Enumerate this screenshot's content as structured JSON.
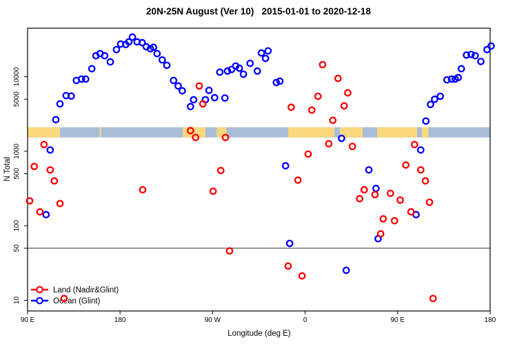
{
  "title": "20N-25N August (Ver 10)   2015-01-01 to 2020-12-18",
  "chart_data": {
    "type": "scatter",
    "title": "20N-25N August (Ver 10)  2015-01-01 to 2020-12-18",
    "xlabel": "Longitude (deg E)",
    "ylabel": "N Total",
    "x_axis": {
      "note": "longitude unwrapped eastward from 90E, degrees along axis 90..540",
      "range": [
        90,
        540
      ],
      "ticks": [
        {
          "value": 90,
          "label": "90 E"
        },
        {
          "value": 180,
          "label": "180"
        },
        {
          "value": 270,
          "label": "90 W"
        },
        {
          "value": 360,
          "label": "0"
        },
        {
          "value": 450,
          "label": "90 E"
        },
        {
          "value": 540,
          "label": "180"
        }
      ]
    },
    "y_axis": {
      "scale": "log",
      "range": [
        7.2,
        44700
      ],
      "ticks": [
        10,
        50,
        100,
        500,
        1000,
        5000,
        10000
      ],
      "tick_labels": [
        "10",
        "50",
        "100",
        "500",
        "1000",
        "5000",
        "10000"
      ]
    },
    "reference_line_y": 50,
    "map_band": {
      "description": "strip map of the 20N-25N latitude band drawn across the plot",
      "y_range": [
        1530,
        2100
      ],
      "ocean_color": "#A9BDD9",
      "land_color": "#FAD87E",
      "land_segments_deg": [
        [
          90,
          121.5
        ],
        [
          160,
          161.5
        ],
        [
          241,
          263
        ],
        [
          274,
          283.5
        ],
        [
          343.5,
          388.5
        ],
        [
          394,
          416
        ],
        [
          430,
          469
        ],
        [
          473.5,
          480
        ]
      ]
    },
    "legend": {
      "position": "bottom-left",
      "items": [
        {
          "label": "Land (Nadir&Glint)",
          "color": "#FF0000"
        },
        {
          "label": "Ocean (Glint)",
          "color": "#0000FF"
        }
      ]
    },
    "series": [
      {
        "name": "Land (Nadir&Glint)",
        "color": "#FF0000",
        "points": [
          [
            92,
            216
          ],
          [
            96.5,
            625
          ],
          [
            102,
            154
          ],
          [
            106,
            1230
          ],
          [
            112,
            562
          ],
          [
            116,
            400
          ],
          [
            121.5,
            199
          ],
          [
            125.5,
            10.6
          ],
          [
            202,
            304
          ],
          [
            248.5,
            1890
          ],
          [
            253.5,
            1530
          ],
          [
            257,
            7510
          ],
          [
            260.5,
            4320
          ],
          [
            270.5,
            291
          ],
          [
            278,
            551
          ],
          [
            282.5,
            1530
          ],
          [
            286.5,
            46
          ],
          [
            343.5,
            28.8
          ],
          [
            346.5,
            3890
          ],
          [
            353,
            409
          ],
          [
            357,
            21.3
          ],
          [
            363,
            916
          ],
          [
            366.5,
            3570
          ],
          [
            372.5,
            5460
          ],
          [
            377,
            14500
          ],
          [
            383,
            1260
          ],
          [
            387,
            2600
          ],
          [
            392,
            9480
          ],
          [
            398,
            4060
          ],
          [
            401.5,
            6070
          ],
          [
            406,
            1160
          ],
          [
            413,
            231
          ],
          [
            417.5,
            304
          ],
          [
            428,
            262
          ],
          [
            433.5,
            78
          ],
          [
            436,
            124
          ],
          [
            443,
            273
          ],
          [
            447,
            117
          ],
          [
            452.5,
            221
          ],
          [
            458,
            653
          ],
          [
            463,
            154
          ],
          [
            466.5,
            1230
          ],
          [
            472.5,
            562
          ],
          [
            477,
            400
          ],
          [
            481,
            207
          ],
          [
            484.5,
            10.6
          ]
        ]
      },
      {
        "name": "Ocean (Glint)",
        "color": "#0000FF",
        "points": [
          [
            108,
            141
          ],
          [
            112,
            1040
          ],
          [
            117.5,
            2650
          ],
          [
            121.5,
            4320
          ],
          [
            127.5,
            5580
          ],
          [
            132.5,
            5500
          ],
          [
            137.5,
            8900
          ],
          [
            142.5,
            9290
          ],
          [
            146.5,
            9290
          ],
          [
            152.5,
            12800
          ],
          [
            156.5,
            19100
          ],
          [
            160.5,
            20400
          ],
          [
            165,
            19100
          ],
          [
            170.5,
            15800
          ],
          [
            176.5,
            23100
          ],
          [
            180.5,
            27400
          ],
          [
            185.5,
            27000
          ],
          [
            188.5,
            29300
          ],
          [
            192,
            34000
          ],
          [
            196.5,
            29300
          ],
          [
            201.5,
            28600
          ],
          [
            205.5,
            25200
          ],
          [
            209.5,
            23700
          ],
          [
            212.5,
            24800
          ],
          [
            216,
            20400
          ],
          [
            221,
            16800
          ],
          [
            225.5,
            14200
          ],
          [
            232,
            8900
          ],
          [
            236.5,
            7510
          ],
          [
            240.5,
            6470
          ],
          [
            248.5,
            3970
          ],
          [
            251.5,
            4910
          ],
          [
            263,
            4910
          ],
          [
            266.5,
            6560
          ],
          [
            272,
            5230
          ],
          [
            277,
            11500
          ],
          [
            282,
            5180
          ],
          [
            284.5,
            11900
          ],
          [
            288.5,
            12500
          ],
          [
            292.5,
            13900
          ],
          [
            296,
            13000
          ],
          [
            300,
            10800
          ],
          [
            306.5,
            15100
          ],
          [
            313.5,
            11900
          ],
          [
            317.5,
            20800
          ],
          [
            321.5,
            17600
          ],
          [
            324,
            22200
          ],
          [
            332,
            8350
          ],
          [
            335.5,
            8700
          ],
          [
            341,
            638
          ],
          [
            345,
            58
          ],
          [
            395.5,
            1490
          ],
          [
            400,
            25.3
          ],
          [
            422,
            562
          ],
          [
            429,
            317
          ],
          [
            431,
            67
          ],
          [
            468,
            141
          ],
          [
            472.5,
            1040
          ],
          [
            477.5,
            2540
          ],
          [
            482,
            4240
          ],
          [
            486,
            4980
          ],
          [
            491.5,
            5460
          ],
          [
            498,
            9070
          ],
          [
            502.5,
            9290
          ],
          [
            506,
            9290
          ],
          [
            509,
            9730
          ],
          [
            512,
            12800
          ],
          [
            517,
            19500
          ],
          [
            521.5,
            19900
          ],
          [
            525.5,
            19100
          ],
          [
            531,
            16000
          ],
          [
            537,
            23100
          ],
          [
            541,
            25800
          ]
        ]
      }
    ]
  }
}
